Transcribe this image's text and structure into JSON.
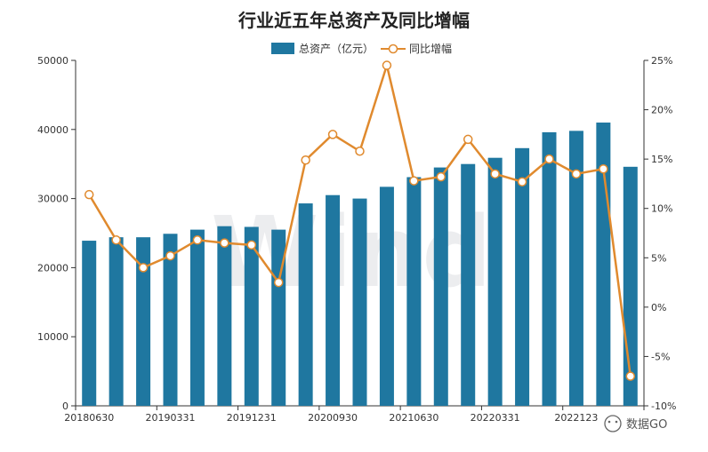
{
  "chart_data": {
    "type": "bar+line",
    "title": "行业近五年总资产及同比增幅",
    "series": [
      {
        "name": "总资产（亿元）",
        "type": "bar",
        "axis": "left",
        "color": "#1f77a0",
        "values": [
          23900,
          24400,
          24400,
          24900,
          25500,
          26000,
          25900,
          25500,
          29300,
          30500,
          30000,
          31700,
          33100,
          34500,
          35000,
          35900,
          37300,
          39600,
          39800,
          41000,
          34600
        ]
      },
      {
        "name": "同比增幅",
        "type": "line",
        "axis": "right",
        "color": "#e08a2e",
        "values": [
          11.4,
          6.8,
          4.0,
          5.2,
          6.8,
          6.5,
          6.3,
          2.5,
          14.9,
          17.5,
          15.8,
          24.5,
          12.8,
          13.2,
          17.0,
          13.5,
          12.7,
          15.0,
          13.5,
          14.0,
          -7.0
        ]
      }
    ],
    "categories_count": 21,
    "x_tick_labels": [
      "20180630",
      "20190331",
      "20191231",
      "20200930",
      "20210630",
      "20220331",
      "2022123"
    ],
    "y_left": {
      "ticks": [
        "0",
        "10000",
        "20000",
        "30000",
        "40000",
        "50000"
      ],
      "ylim": [
        0,
        50000
      ]
    },
    "y_right": {
      "ticks": [
        "-10%",
        "-5%",
        "0%",
        "5%",
        "10%",
        "15%",
        "20%",
        "25%"
      ],
      "ylim": [
        -10,
        25
      ]
    },
    "legend_position": "top-center",
    "grid": false
  },
  "watermark": {
    "text": "Wind",
    "badge_text": "数据GO"
  }
}
